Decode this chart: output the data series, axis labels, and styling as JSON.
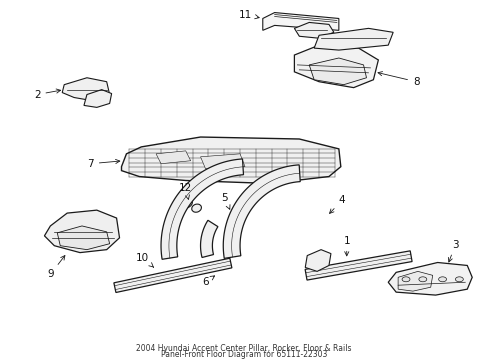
{
  "background_color": "#ffffff",
  "line_color": "#1a1a1a",
  "label_color": "#111111",
  "fig_width": 4.89,
  "fig_height": 3.6,
  "dpi": 100,
  "title_line1": "2004 Hyundai Accent Center Pillar, Rocker, Floor & Rails",
  "title_line2": "Panel-Front Floor Diagram for 65111-22303",
  "parts": {
    "label_fontsize": 7.5,
    "arrow_lw": 0.6
  }
}
